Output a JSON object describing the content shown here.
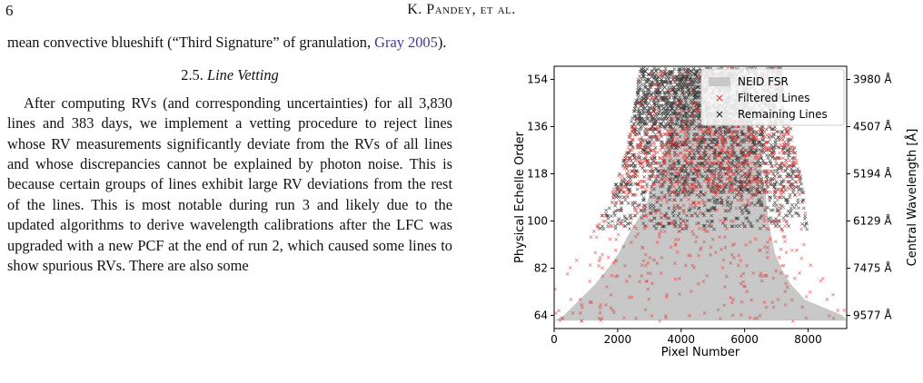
{
  "header": {
    "page_number": "6",
    "running_head": "K. Pandey, et al."
  },
  "body": {
    "para1": "mean convective blueshift (“Third Signature” of granulation, ",
    "para1_cite": "Gray 2005",
    "para1_end": ").",
    "section_number": "2.5.",
    "section_title": "Line Vetting",
    "para2": "After computing RVs (and corresponding uncertainties) for all 3,830 lines and 383 days, we implement a vetting procedure to reject lines whose RV measurements significantly deviate from the RVs of all lines and whose discrepancies cannot be explained by photon noise. This is because certain groups of lines exhibit large RV deviations from the rest of the lines. This is most notable during run 3 and likely due to the updated algorithms to derive wavelength calibrations after the LFC was upgraded with a new PCF at the end of run 2, which caused some lines to show spurious RVs. There are also some"
  },
  "figure": {
    "chart_data": {
      "type": "scatter",
      "xlabel": "Pixel Number",
      "ylabel": "Physical Echelle Order",
      "ylabel_right": "Central Wavelength [Å]",
      "xlim": [
        0,
        9216
      ],
      "ylim": [
        159,
        59
      ],
      "x_ticks": [
        0,
        2000,
        4000,
        6000,
        8000
      ],
      "y_ticks": [
        64,
        82,
        100,
        118,
        136,
        154
      ],
      "right_ticks": [
        {
          "order": 64,
          "label": "9577 Å"
        },
        {
          "order": 82,
          "label": "7475 Å"
        },
        {
          "order": 100,
          "label": "6129 Å"
        },
        {
          "order": 118,
          "label": "5194 Å"
        },
        {
          "order": 136,
          "label": "4507 Å"
        },
        {
          "order": 154,
          "label": "3980 Å"
        }
      ],
      "legend": {
        "placement": "top-right",
        "entries": [
          {
            "label": "NEID FSR",
            "kind": "patch",
            "color": "#c8c8c8"
          },
          {
            "label": "Filtered Lines",
            "kind": "marker",
            "color": "#e53935"
          },
          {
            "label": "Remaining Lines",
            "kind": "marker",
            "color": "#222222"
          }
        ]
      },
      "fsr_region": {
        "color": "#c8c8c8",
        "orders": [
          62,
          64,
          70,
          76,
          82,
          88,
          94,
          100,
          106,
          112,
          118,
          124,
          130,
          136,
          142,
          148,
          154,
          158
        ],
        "left_edge": [
          0,
          300,
          800,
          1300,
          1700,
          2050,
          2300,
          2600,
          2900,
          3050,
          3250,
          3400,
          3500,
          3600,
          3700,
          3800,
          3850,
          3900
        ],
        "right_edge": [
          9200,
          9100,
          7900,
          7450,
          7150,
          6950,
          6850,
          6750,
          6700,
          6650,
          6550,
          6450,
          6350,
          6250,
          6150,
          6050,
          6000,
          5950
        ]
      },
      "series": [
        {
          "name": "Filtered Lines",
          "color": "#e53935",
          "density": [
            {
              "from": 62,
              "to": 96,
              "count": 230
            },
            {
              "from": 96,
              "to": 110,
              "count": 140
            },
            {
              "from": 110,
              "to": 136,
              "count": 750
            },
            {
              "from": 136,
              "to": 158,
              "count": 160
            }
          ]
        },
        {
          "name": "Remaining Lines",
          "color": "#222222",
          "density": [
            {
              "from": 97,
              "to": 110,
              "count": 320
            },
            {
              "from": 110,
              "to": 136,
              "count": 1100
            },
            {
              "from": 136,
              "to": 158,
              "count": 1700
            }
          ]
        }
      ]
    }
  }
}
